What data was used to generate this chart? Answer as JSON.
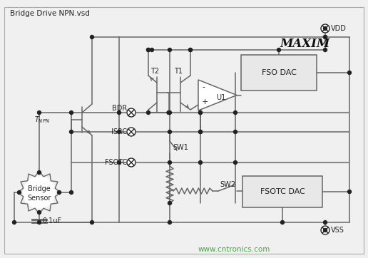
{
  "title": "Bridge Drive NPN.vsd",
  "watermark": "www.cntronics.com",
  "bg_color": "#f0f0f0",
  "lc": "#666666",
  "lc_dark": "#333333",
  "vdd_label": "VDD",
  "vss_label": "VSS",
  "fso_dac_label": "FSO DAC",
  "fsotc_dac_label": "FSOTC DAC",
  "u1_label": "U1",
  "t1_label": "T1",
  "t2_label": "T2",
  "bdr_label": "BDR",
  "isrc_label": "ISRC",
  "fsotc_label": "FSOTC",
  "sw1_label": "SW1",
  "sw2_label": "SW2",
  "bridge_label1": "Bridge",
  "bridge_label2": "Sensor",
  "cap_label": "0.1uF",
  "maxim_label": "MAXIM",
  "watermark_color": "#44aa44"
}
